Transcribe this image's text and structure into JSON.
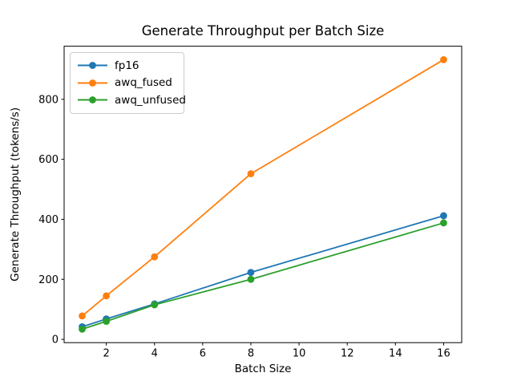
{
  "title": "Generate Throughput per Batch Size",
  "xlabel": "Batch Size",
  "ylabel": "Generate Throughput (tokens/s)",
  "chart_data": {
    "type": "line",
    "x": [
      1,
      2,
      4,
      8,
      16
    ],
    "series": [
      {
        "name": "fp16",
        "color": "#1f77b4",
        "values": [
          42,
          68,
          118,
          223,
          412
        ]
      },
      {
        "name": "awq_fused",
        "color": "#ff7f0e",
        "values": [
          78,
          145,
          275,
          552,
          932
        ]
      },
      {
        "name": "awq_unfused",
        "color": "#2ca02c",
        "values": [
          34,
          60,
          115,
          200,
          388
        ]
      }
    ],
    "x_ticks": [
      2,
      4,
      6,
      8,
      10,
      12,
      14,
      16
    ],
    "y_ticks": [
      0,
      200,
      400,
      600,
      800
    ],
    "xlim": [
      0.25,
      16.75
    ],
    "ylim": [
      -11,
      977
    ],
    "grid": false,
    "legend_position": "upper left",
    "marker": "o",
    "line_width": 1.8,
    "marker_radius": 4.4,
    "axis_color": "#000000"
  }
}
